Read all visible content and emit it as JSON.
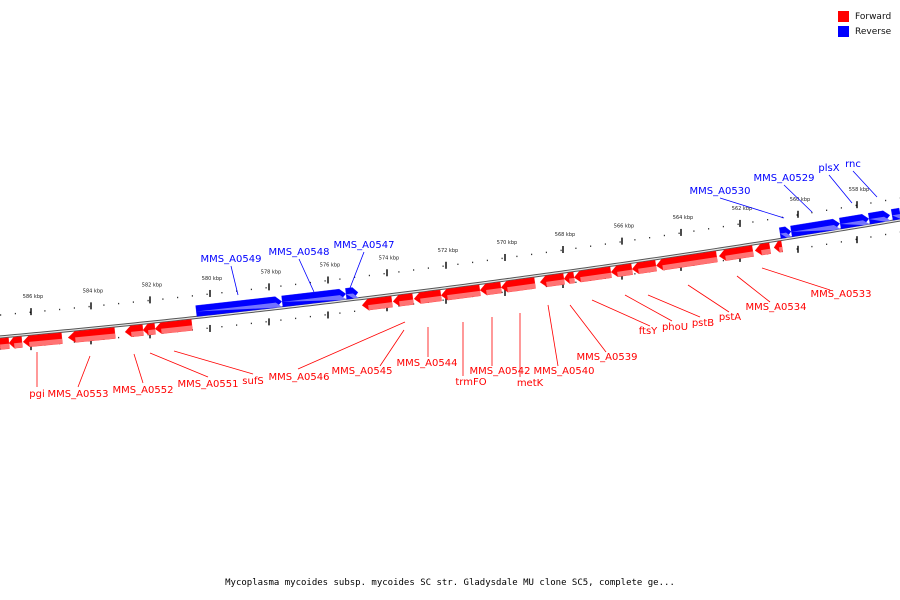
{
  "legend": {
    "forward_label": "Forward",
    "reverse_label": "Reverse",
    "forward_color": "#ff0000",
    "reverse_color": "#0000ff"
  },
  "caption": "Mycoplasma mycoides subsp. mycoides SC str. Gladysdale MU clone SC5, complete ge...",
  "scale_labels": [
    "586 kbp",
    "584 kbp",
    "582 kbp",
    "580 kbp",
    "578 kbp",
    "576 kbp",
    "574 kbp",
    "572 kbp",
    "570 kbp",
    "568 kbp",
    "566 kbp",
    "564 kbp",
    "562 kbp",
    "560 kbp",
    "558 kbp"
  ],
  "genes": {
    "forward": [
      "pgi",
      "MMS_A0553",
      "MMS_A0552",
      "MMS_A0551",
      "sufS",
      "MMS_A0546",
      "MMS_A0545",
      "MMS_A0544",
      "trmFO",
      "MMS_A0542",
      "metK",
      "MMS_A0540",
      "MMS_A0539",
      "ftsY",
      "phoU",
      "pstB",
      "pstA",
      "MMS_A0534",
      "MMS_A0533"
    ],
    "reverse": [
      "MMS_A0549",
      "MMS_A0548",
      "MMS_A0547",
      "MMS_A0530",
      "MMS_A0529",
      "plsX",
      "rnc"
    ]
  }
}
